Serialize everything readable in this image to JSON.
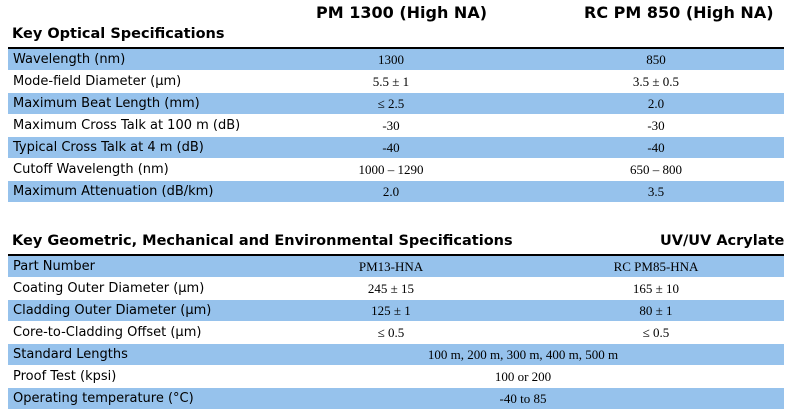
{
  "header": {
    "col1": "PM 1300 (High NA)",
    "col2": "RC PM 850 (High NA)"
  },
  "optical": {
    "title": "Key Optical Specifications",
    "rows": [
      {
        "label": "Wavelength (nm)",
        "v1": "1300",
        "v2": "850"
      },
      {
        "label": "Mode-field Diameter (µm)",
        "v1": "5.5 ± 1",
        "v2": "3.5 ± 0.5"
      },
      {
        "label": "Maximum Beat Length (mm)",
        "v1": "≤ 2.5",
        "v2": "2.0"
      },
      {
        "label": "Maximum Cross Talk at 100 m (dB)",
        "v1": "-30",
        "v2": "-30"
      },
      {
        "label": "Typical Cross Talk at 4 m (dB)",
        "v1": "-40",
        "v2": "-40"
      },
      {
        "label": "Cutoff Wavelength (nm)",
        "v1": "1000 – 1290",
        "v2": "650 – 800"
      },
      {
        "label": "Maximum Attenuation (dB/km)",
        "v1": "2.0",
        "v2": "3.5"
      }
    ]
  },
  "geometric": {
    "title": "Key Geometric, Mechanical and Environmental Specifications",
    "coating_label": "UV/UV Acrylate",
    "rows": [
      {
        "label": "Part Number",
        "v1": "PM13-HNA",
        "v2": "RC PM85-HNA"
      },
      {
        "label": "Coating Outer Diameter (µm)",
        "v1": "245 ± 15",
        "v2": "165 ± 10"
      },
      {
        "label": "Cladding Outer Diameter (µm)",
        "v1": "125 ± 1",
        "v2": "80 ± 1"
      },
      {
        "label": "Core-to-Cladding Offset (µm)",
        "v1": "≤ 0.5",
        "v2": "≤ 0.5"
      },
      {
        "label": "Standard Lengths",
        "span": "100 m, 200 m, 300 m, 400 m, 500 m"
      },
      {
        "label": "Proof Test (kpsi)",
        "span": "100 or 200"
      },
      {
        "label": "Operating temperature (°C)",
        "span": "-40 to 85"
      }
    ]
  }
}
